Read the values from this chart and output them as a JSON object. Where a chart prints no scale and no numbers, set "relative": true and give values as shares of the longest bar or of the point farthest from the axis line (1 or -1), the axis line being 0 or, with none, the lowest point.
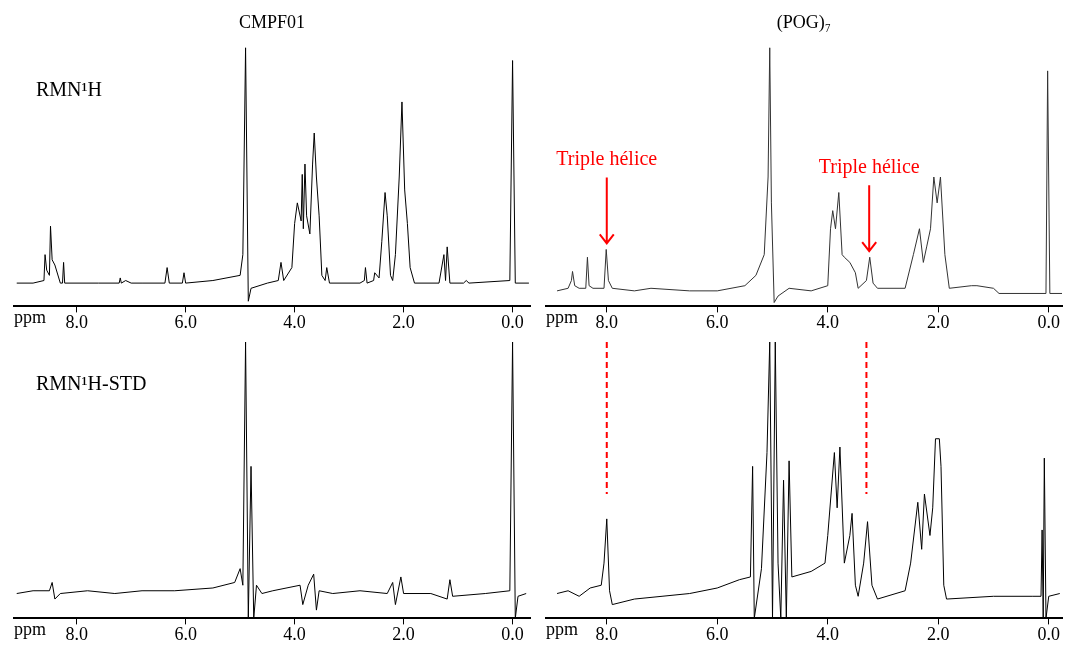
{
  "chart_data": [
    {
      "type": "line",
      "title": "CMPF01",
      "xlabel": "ppm",
      "relative": true,
      "marker": "none",
      "tick_labels": "x",
      "color": "#000000",
      "xlim": [
        9.15,
        -0.32
      ],
      "xticks": [
        {
          "value": 8,
          "label": "8.0"
        },
        {
          "value": 6,
          "label": "6.0"
        },
        {
          "value": 4,
          "label": "4.0"
        },
        {
          "value": 2,
          "label": "2.0"
        },
        {
          "value": 0,
          "label": "0.0"
        }
      ],
      "annotations": [
        "RMN¹H"
      ],
      "x": [
        9.1,
        8.8,
        8.6,
        8.58,
        8.55,
        8.5,
        8.48,
        8.45,
        8.4,
        8.3,
        8.26,
        8.24,
        8.22,
        7.6,
        7.22,
        7.2,
        7.18,
        7.1,
        7.0,
        6.8,
        6.38,
        6.34,
        6.3,
        6.06,
        6.03,
        6.0,
        5.5,
        5.0,
        4.95,
        4.9,
        4.85,
        4.8,
        4.5,
        4.3,
        4.25,
        4.2,
        4.05,
        4.0,
        3.95,
        3.88,
        3.86,
        3.84,
        3.81,
        3.78,
        3.72,
        3.67,
        3.64,
        3.6,
        3.55,
        3.5,
        3.44,
        3.41,
        3.36,
        2.8,
        2.72,
        2.7,
        2.67,
        2.55,
        2.53,
        2.45,
        2.4,
        2.34,
        2.3,
        2.24,
        2.2,
        2.15,
        2.08,
        2.03,
        1.98,
        1.93,
        1.88,
        1.8,
        1.35,
        1.26,
        1.23,
        1.2,
        1.15,
        0.9,
        0.85,
        0.8,
        0.05,
        0.0,
        -0.05,
        -0.3
      ],
      "values": [
        0.09,
        0.09,
        0.1,
        0.2,
        0.14,
        0.12,
        0.31,
        0.18,
        0.16,
        0.09,
        0.09,
        0.17,
        0.09,
        0.09,
        0.09,
        0.11,
        0.09,
        0.1,
        0.09,
        0.09,
        0.09,
        0.15,
        0.09,
        0.09,
        0.13,
        0.09,
        0.1,
        0.12,
        0.2,
        1.0,
        0.02,
        0.07,
        0.09,
        0.1,
        0.17,
        0.1,
        0.15,
        0.32,
        0.4,
        0.33,
        0.51,
        0.3,
        0.55,
        0.35,
        0.28,
        0.55,
        0.67,
        0.5,
        0.35,
        0.12,
        0.1,
        0.15,
        0.09,
        0.09,
        0.1,
        0.15,
        0.09,
        0.1,
        0.13,
        0.11,
        0.25,
        0.44,
        0.35,
        0.12,
        0.1,
        0.2,
        0.5,
        0.79,
        0.45,
        0.32,
        0.15,
        0.09,
        0.09,
        0.2,
        0.1,
        0.23,
        0.09,
        0.09,
        0.1,
        0.09,
        0.1,
        0.95,
        0.09,
        0.09
      ]
    },
    {
      "type": "line",
      "title": "(POG)₇",
      "relative": true,
      "marker": "none",
      "tick_labels": "x",
      "xlabel": "ppm",
      "color": "#333333",
      "xlim": [
        9.1,
        -0.24
      ],
      "xticks": [
        {
          "value": 8,
          "label": "8.0"
        },
        {
          "value": 6,
          "label": "6.0"
        },
        {
          "value": 4,
          "label": "4.0"
        },
        {
          "value": 2,
          "label": "2.0"
        },
        {
          "value": 0,
          "label": "0.0"
        }
      ],
      "annotations": [
        {
          "text": "Triple hélice",
          "x": 8.0,
          "y": 0.22
        },
        {
          "text": "Triple hélice",
          "x": 3.25,
          "y": 0.19
        }
      ],
      "x": [
        8.9,
        8.7,
        8.64,
        8.62,
        8.58,
        8.5,
        8.38,
        8.35,
        8.32,
        8.25,
        8.05,
        8.01,
        7.97,
        7.9,
        7.5,
        7.2,
        6.5,
        6.0,
        5.5,
        5.3,
        5.15,
        5.08,
        5.05,
        5.02,
        4.97,
        4.9,
        4.7,
        4.3,
        4.0,
        3.95,
        3.91,
        3.86,
        3.8,
        3.74,
        3.7,
        3.6,
        3.5,
        3.45,
        3.3,
        3.24,
        3.18,
        3.1,
        2.6,
        2.45,
        2.34,
        2.27,
        2.21,
        2.14,
        2.08,
        2.02,
        1.96,
        1.88,
        1.8,
        1.4,
        1.3,
        1.0,
        0.9,
        0.05,
        0.02,
        -0.02,
        -0.24
      ],
      "values": [
        0.06,
        0.07,
        0.1,
        0.135,
        0.08,
        0.07,
        0.07,
        0.19,
        0.08,
        0.07,
        0.07,
        0.22,
        0.1,
        0.07,
        0.06,
        0.07,
        0.06,
        0.06,
        0.08,
        0.12,
        0.2,
        0.5,
        1.0,
        0.4,
        0.015,
        0.04,
        0.07,
        0.06,
        0.08,
        0.3,
        0.37,
        0.3,
        0.44,
        0.2,
        0.19,
        0.17,
        0.13,
        0.07,
        0.1,
        0.19,
        0.09,
        0.07,
        0.07,
        0.2,
        0.3,
        0.17,
        0.23,
        0.3,
        0.5,
        0.4,
        0.5,
        0.2,
        0.07,
        0.08,
        0.08,
        0.07,
        0.05,
        0.05,
        0.91,
        0.05,
        0.05
      ]
    },
    {
      "type": "line",
      "xlabel": "ppm",
      "relative": true,
      "marker": "none",
      "tick_labels": "x",
      "color": "#000000",
      "xlim": [
        9.15,
        -0.32
      ],
      "xticks": [
        {
          "value": 8,
          "label": "8.0"
        },
        {
          "value": 6,
          "label": "6.0"
        },
        {
          "value": 4,
          "label": "4.0"
        },
        {
          "value": 2,
          "label": "2.0"
        },
        {
          "value": 0,
          "label": "0.0"
        }
      ],
      "annotations": [
        "RMN¹H-STD"
      ],
      "x": [
        9.1,
        8.8,
        8.5,
        8.45,
        8.4,
        8.3,
        7.8,
        7.3,
        6.8,
        6.2,
        5.5,
        5.1,
        5.0,
        4.95,
        4.9,
        4.85,
        4.8,
        4.75,
        4.7,
        4.6,
        4.4,
        3.9,
        3.85,
        3.75,
        3.65,
        3.6,
        3.55,
        3.3,
        2.8,
        2.3,
        2.2,
        2.15,
        2.05,
        2.0,
        1.5,
        1.2,
        1.15,
        1.1,
        0.5,
        0.05,
        0.0,
        -0.05,
        -0.1,
        -0.25
      ],
      "values": [
        0.09,
        0.1,
        0.1,
        0.13,
        0.07,
        0.09,
        0.1,
        0.09,
        0.1,
        0.1,
        0.11,
        0.13,
        0.18,
        0.12,
        1.0,
        0.0,
        0.55,
        0.0,
        0.12,
        0.09,
        0.1,
        0.12,
        0.05,
        0.12,
        0.16,
        0.03,
        0.1,
        0.09,
        0.1,
        0.09,
        0.13,
        0.05,
        0.15,
        0.09,
        0.09,
        0.07,
        0.14,
        0.08,
        0.09,
        0.1,
        1.0,
        0.0,
        0.08,
        0.09
      ]
    },
    {
      "type": "line",
      "xlabel": "ppm",
      "relative": true,
      "marker": "none",
      "tick_labels": "x",
      "color": "#000000",
      "xlim": [
        9.1,
        -0.24
      ],
      "xticks": [
        {
          "value": 8,
          "label": "8.0"
        },
        {
          "value": 6,
          "label": "6.0"
        },
        {
          "value": 4,
          "label": "4.0"
        },
        {
          "value": 2,
          "label": "2.0"
        },
        {
          "value": 0,
          "label": "0.0"
        }
      ],
      "ref_lines": [
        {
          "axis": "x",
          "value": 8.0,
          "color": "#ff0000",
          "line_style": "dashed"
        },
        {
          "axis": "x",
          "value": 3.3,
          "color": "#ff0000",
          "line_style": "dashed"
        }
      ],
      "x": [
        8.9,
        8.7,
        8.5,
        8.3,
        8.1,
        8.05,
        8.0,
        7.95,
        7.9,
        7.5,
        7.0,
        6.5,
        6.0,
        5.6,
        5.4,
        5.36,
        5.33,
        5.2,
        5.1,
        5.05,
        5.0,
        4.95,
        4.9,
        4.85,
        4.8,
        4.75,
        4.7,
        4.65,
        4.3,
        4.05,
        4.0,
        3.88,
        3.83,
        3.78,
        3.7,
        3.6,
        3.56,
        3.5,
        3.45,
        3.35,
        3.28,
        3.2,
        3.1,
        2.6,
        2.5,
        2.37,
        2.3,
        2.25,
        2.15,
        2.1,
        2.05,
        1.98,
        1.95,
        1.9,
        1.85,
        1.0,
        0.3,
        0.14,
        0.12,
        0.1,
        0.08,
        0.05,
        0.0,
        -0.2
      ],
      "values": [
        0.09,
        0.1,
        0.08,
        0.11,
        0.12,
        0.2,
        0.36,
        0.1,
        0.05,
        0.07,
        0.08,
        0.09,
        0.11,
        0.14,
        0.15,
        0.55,
        0.0,
        0.18,
        0.6,
        1.0,
        0.0,
        1.0,
        0.2,
        0.0,
        0.5,
        0.0,
        0.57,
        0.15,
        0.17,
        0.2,
        0.3,
        0.6,
        0.4,
        0.62,
        0.2,
        0.3,
        0.38,
        0.12,
        0.08,
        0.2,
        0.35,
        0.12,
        0.07,
        0.1,
        0.2,
        0.42,
        0.25,
        0.45,
        0.3,
        0.4,
        0.65,
        0.65,
        0.55,
        0.12,
        0.07,
        0.08,
        0.08,
        0.08,
        0.32,
        0.0,
        0.58,
        0.0,
        0.08,
        0.09
      ]
    }
  ]
}
